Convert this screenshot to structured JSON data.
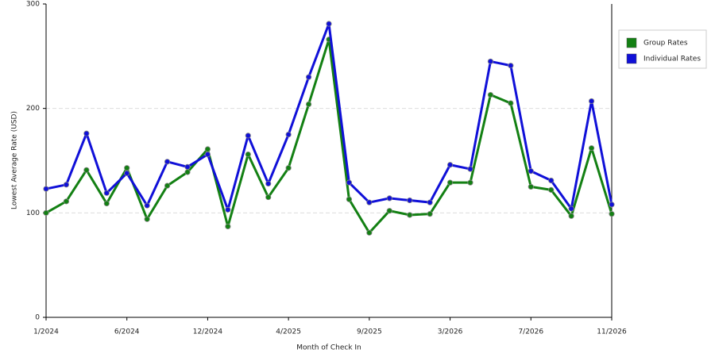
{
  "chart_data": {
    "type": "line",
    "x_label": "Month of Check In",
    "y_label": "Lowest Average Rate (USD)",
    "categories": [
      "1/2024",
      null,
      null,
      null,
      "6/2024",
      null,
      null,
      null,
      "12/2024",
      null,
      null,
      null,
      "4/2025",
      null,
      null,
      null,
      "9/2025",
      null,
      null,
      null,
      "3/2026",
      null,
      null,
      null,
      "7/2026",
      null,
      null,
      null,
      "11/2026"
    ],
    "series": [
      {
        "name": "Group Rates",
        "color": "#138013",
        "values": [
          100,
          111,
          141,
          109,
          143,
          94,
          126,
          139,
          161,
          87,
          156,
          115,
          143,
          204,
          266,
          113,
          81,
          102,
          98,
          99,
          129,
          129,
          213,
          205,
          125,
          122,
          97,
          162,
          99
        ]
      },
      {
        "name": "Individual Rates",
        "color": "#1010d8",
        "values": [
          123,
          127,
          176,
          119,
          138,
          107,
          149,
          144,
          156,
          103,
          174,
          128,
          175,
          230,
          281,
          129,
          110,
          114,
          112,
          110,
          146,
          142,
          245,
          241,
          140,
          131,
          104,
          207,
          108
        ]
      }
    ],
    "ylim": [
      0,
      300
    ],
    "yticks": [
      0,
      100,
      200,
      300
    ],
    "grid": true,
    "legend": "right"
  }
}
